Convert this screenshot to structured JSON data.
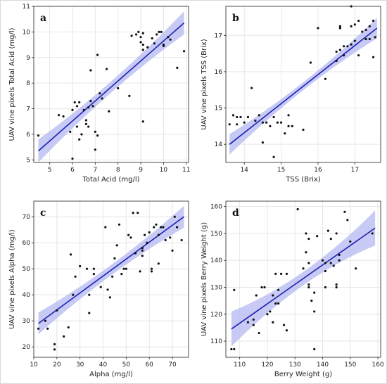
{
  "colors": {
    "points": "#111111",
    "fit_line": "#1f1fb4",
    "confidence_band": "#b3b8f0",
    "grid": "#e6e6e6"
  },
  "chart_data": [
    {
      "type": "scatter",
      "panel_label": "a",
      "xlabel": "Total Acid (mg/l)",
      "ylabel": "UAV vine pixels Total Acid (mg/l)",
      "xlim": [
        4.3,
        11.1
      ],
      "ylim": [
        4.9,
        11.0
      ],
      "xticks": [
        5,
        6,
        7,
        8,
        9,
        10,
        11
      ],
      "yticks": [
        5,
        6,
        7,
        8,
        9,
        10,
        11
      ],
      "grid": true,
      "fit_line": {
        "x": [
          4.5,
          10.9
        ],
        "y": [
          5.35,
          10.35
        ]
      },
      "band_half_width": {
        "edge": 0.45,
        "center": 0.22
      },
      "points": [
        [
          4.5,
          5.95
        ],
        [
          5.4,
          6.75
        ],
        [
          5.6,
          6.7
        ],
        [
          5.9,
          6.1
        ],
        [
          6.0,
          6.95
        ],
        [
          6.0,
          5.05
        ],
        [
          6.1,
          7.25
        ],
        [
          6.2,
          7.1
        ],
        [
          6.2,
          6.3
        ],
        [
          6.3,
          5.8
        ],
        [
          6.3,
          7.25
        ],
        [
          6.4,
          6.0
        ],
        [
          6.5,
          6.95
        ],
        [
          6.6,
          6.55
        ],
        [
          6.6,
          6.4
        ],
        [
          6.7,
          6.3
        ],
        [
          6.7,
          7.05
        ],
        [
          6.8,
          7.3
        ],
        [
          6.8,
          8.5
        ],
        [
          6.9,
          7.1
        ],
        [
          7.0,
          6.1
        ],
        [
          7.0,
          5.4
        ],
        [
          7.1,
          5.95
        ],
        [
          7.1,
          9.1
        ],
        [
          7.2,
          7.6
        ],
        [
          7.3,
          7.4
        ],
        [
          7.5,
          8.55
        ],
        [
          7.6,
          6.9
        ],
        [
          8.0,
          7.8
        ],
        [
          8.5,
          7.5
        ],
        [
          8.6,
          9.85
        ],
        [
          8.8,
          9.9
        ],
        [
          8.9,
          10.0
        ],
        [
          9.0,
          9.6
        ],
        [
          9.0,
          9.8
        ],
        [
          9.1,
          9.3
        ],
        [
          9.1,
          9.5
        ],
        [
          9.1,
          6.5
        ],
        [
          9.1,
          9.95
        ],
        [
          9.3,
          9.4
        ],
        [
          9.5,
          9.75
        ],
        [
          9.6,
          9.55
        ],
        [
          9.7,
          9.9
        ],
        [
          9.8,
          10.0
        ],
        [
          9.9,
          10.0
        ],
        [
          10.0,
          9.5
        ],
        [
          10.0,
          9.45
        ],
        [
          10.2,
          9.8
        ],
        [
          10.3,
          9.7
        ],
        [
          10.6,
          8.6
        ],
        [
          10.9,
          9.25
        ]
      ]
    },
    {
      "type": "scatter",
      "panel_label": "b",
      "xlabel": "TSS (Brix)",
      "ylabel": "UAV vine pixels TSS (Brix)",
      "xlim": [
        13.5,
        17.7
      ],
      "ylim": [
        13.5,
        17.8
      ],
      "xticks": [
        14,
        15,
        16,
        17
      ],
      "yticks": [
        14,
        15,
        16,
        17
      ],
      "grid": true,
      "fit_line": {
        "x": [
          13.6,
          17.6
        ],
        "y": [
          14.0,
          17.2
        ]
      },
      "band_half_width": {
        "edge": 0.28,
        "center": 0.11
      },
      "points": [
        [
          13.6,
          14.55
        ],
        [
          13.7,
          14.8
        ],
        [
          13.8,
          14.55
        ],
        [
          13.8,
          14.75
        ],
        [
          13.9,
          14.75
        ],
        [
          14.0,
          14.6
        ],
        [
          14.1,
          14.75
        ],
        [
          14.2,
          15.55
        ],
        [
          14.3,
          14.65
        ],
        [
          14.4,
          14.8
        ],
        [
          14.5,
          14.05
        ],
        [
          14.5,
          14.6
        ],
        [
          14.6,
          14.6
        ],
        [
          14.7,
          14.5
        ],
        [
          14.8,
          14.75
        ],
        [
          14.8,
          13.65
        ],
        [
          14.9,
          14.6
        ],
        [
          15.0,
          14.6
        ],
        [
          15.1,
          14.3
        ],
        [
          15.2,
          14.5
        ],
        [
          15.2,
          14.8
        ],
        [
          15.3,
          14.5
        ],
        [
          15.6,
          14.4
        ],
        [
          15.8,
          16.25
        ],
        [
          16.0,
          17.2
        ],
        [
          16.2,
          15.8
        ],
        [
          16.5,
          16.55
        ],
        [
          16.5,
          16.3
        ],
        [
          16.6,
          17.2
        ],
        [
          16.6,
          17.25
        ],
        [
          16.6,
          16.6
        ],
        [
          16.7,
          16.45
        ],
        [
          16.7,
          16.7
        ],
        [
          16.8,
          16.7
        ],
        [
          16.9,
          16.75
        ],
        [
          16.9,
          17.25
        ],
        [
          16.9,
          17.8
        ],
        [
          17.0,
          17.3
        ],
        [
          17.0,
          16.85
        ],
        [
          17.1,
          16.45
        ],
        [
          17.1,
          17.4
        ],
        [
          17.2,
          17.1
        ],
        [
          17.3,
          17.15
        ],
        [
          17.3,
          16.9
        ],
        [
          17.4,
          17.25
        ],
        [
          17.4,
          16.9
        ],
        [
          17.5,
          17.4
        ],
        [
          17.5,
          16.4
        ],
        [
          17.55,
          16.95
        ]
      ]
    },
    {
      "type": "scatter",
      "panel_label": "c",
      "xlabel": "Alpha (mg/l)",
      "ylabel": "UAV vine pixels Alpha (mg/l)",
      "xlim": [
        10,
        77
      ],
      "ylim": [
        16,
        76
      ],
      "xticks": [
        10,
        20,
        30,
        40,
        50,
        60,
        70
      ],
      "yticks": [
        20,
        30,
        40,
        50,
        60,
        70
      ],
      "grid": true,
      "fit_line": {
        "x": [
          12,
          75
        ],
        "y": [
          29.0,
          70.0
        ]
      },
      "band_half_width": {
        "edge": 4.2,
        "center": 2.0
      },
      "points": [
        [
          12,
          27
        ],
        [
          15,
          30
        ],
        [
          16,
          27
        ],
        [
          19,
          19
        ],
        [
          19,
          21
        ],
        [
          20,
          34
        ],
        [
          23,
          24
        ],
        [
          25,
          27.5
        ],
        [
          26,
          55.5
        ],
        [
          27,
          40
        ],
        [
          28,
          47
        ],
        [
          30,
          51
        ],
        [
          33,
          50
        ],
        [
          34,
          33
        ],
        [
          34,
          40
        ],
        [
          36,
          48
        ],
        [
          36,
          50
        ],
        [
          39,
          43
        ],
        [
          41,
          66
        ],
        [
          42,
          42
        ],
        [
          43,
          39
        ],
        [
          44,
          47
        ],
        [
          45,
          54
        ],
        [
          46,
          59
        ],
        [
          47,
          67
        ],
        [
          48,
          48
        ],
        [
          49,
          50
        ],
        [
          50,
          50
        ],
        [
          51,
          63
        ],
        [
          52,
          62
        ],
        [
          53,
          71.5
        ],
        [
          54,
          56
        ],
        [
          55,
          71.5
        ],
        [
          56,
          49
        ],
        [
          57,
          55
        ],
        [
          57,
          57
        ],
        [
          57,
          58
        ],
        [
          58,
          63
        ],
        [
          59,
          60
        ],
        [
          60,
          64
        ],
        [
          61,
          49
        ],
        [
          61,
          50
        ],
        [
          62,
          66
        ],
        [
          63,
          67
        ],
        [
          64,
          52
        ],
        [
          64,
          63
        ],
        [
          65,
          66
        ],
        [
          66,
          66
        ],
        [
          67,
          61
        ],
        [
          69,
          62
        ],
        [
          70,
          57
        ],
        [
          71,
          70
        ],
        [
          72,
          66
        ],
        [
          74,
          61
        ]
      ]
    },
    {
      "type": "scatter",
      "panel_label": "d",
      "xlabel": "Berry Weight (g)",
      "ylabel": "UAV vine pixels Berry Weight (g)",
      "xlim": [
        105,
        161
      ],
      "ylim": [
        104,
        162
      ],
      "xticks": [
        110,
        120,
        130,
        140,
        150,
        160
      ],
      "yticks": [
        110,
        120,
        130,
        140,
        150,
        160
      ],
      "grid": true,
      "fit_line": {
        "x": [
          107,
          159
        ],
        "y": [
          114.5,
          152.0
        ]
      },
      "band_half_width": {
        "edge": 6.5,
        "center": 2.5
      },
      "points": [
        [
          107,
          107
        ],
        [
          108,
          129
        ],
        [
          108,
          107
        ],
        [
          113,
          117
        ],
        [
          115,
          116
        ],
        [
          115,
          118
        ],
        [
          116,
          127
        ],
        [
          117,
          113
        ],
        [
          118,
          130
        ],
        [
          119,
          130
        ],
        [
          120,
          120
        ],
        [
          121,
          121
        ],
        [
          122,
          117
        ],
        [
          122,
          127
        ],
        [
          123,
          124
        ],
        [
          123,
          135
        ],
        [
          124,
          129
        ],
        [
          124,
          124
        ],
        [
          125,
          135
        ],
        [
          126,
          116
        ],
        [
          127,
          114
        ],
        [
          127,
          135
        ],
        [
          131,
          159
        ],
        [
          133,
          137
        ],
        [
          134,
          143
        ],
        [
          134,
          150
        ],
        [
          135,
          148
        ],
        [
          135,
          131
        ],
        [
          135,
          139
        ],
        [
          135,
          130
        ],
        [
          136,
          125
        ],
        [
          137,
          121
        ],
        [
          137,
          128
        ],
        [
          137,
          107
        ],
        [
          138,
          149
        ],
        [
          140,
          140
        ],
        [
          141,
          130
        ],
        [
          141,
          136
        ],
        [
          141,
          139
        ],
        [
          142,
          151
        ],
        [
          143,
          139
        ],
        [
          143,
          148
        ],
        [
          144,
          138
        ],
        [
          145,
          131
        ],
        [
          145,
          150
        ],
        [
          145,
          130
        ],
        [
          146,
          140
        ],
        [
          146,
          142
        ],
        [
          148,
          158
        ],
        [
          149,
          155
        ],
        [
          150,
          147
        ],
        [
          152,
          137
        ],
        [
          158,
          150
        ]
      ]
    }
  ]
}
